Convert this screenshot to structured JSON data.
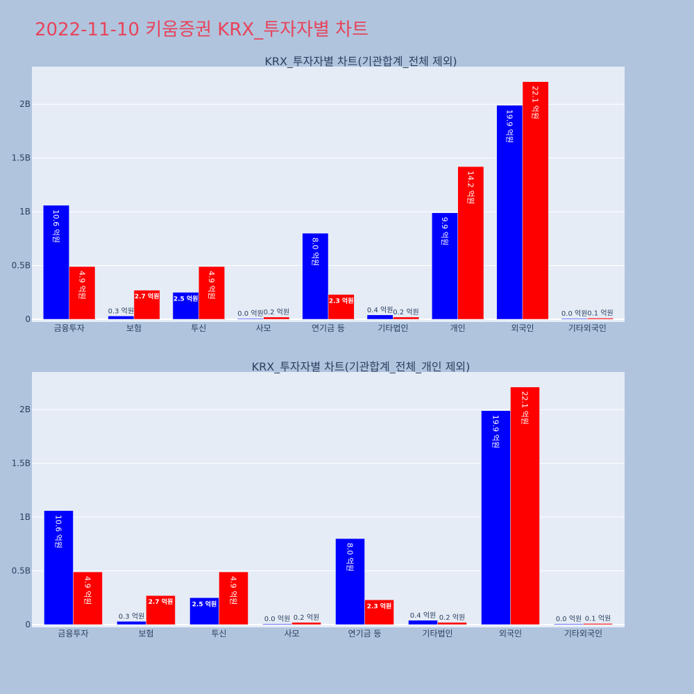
{
  "page": {
    "title": "2022-11-10 키움증권 KRX_투자자별 차트"
  },
  "colors": {
    "background": "#b0c4de",
    "plot_bg": "#e5ecf6",
    "grid": "#ffffff",
    "title": "#e8435a",
    "series_a": "#0000ff",
    "series_b": "#ff0000",
    "text": "#2a3f5f"
  },
  "chart_data": [
    {
      "type": "bar",
      "title": "KRX_투자자별 차트(기관합계_전체 제외)",
      "categories": [
        "금융투자",
        "보험",
        "투신",
        "사모",
        "연기금 등",
        "기타법인",
        "개인",
        "외국인",
        "기타외국인"
      ],
      "series": [
        {
          "values": [
            1.06,
            0.03,
            0.25,
            0.0,
            0.8,
            0.04,
            0.99,
            1.99,
            0.0
          ],
          "labels": [
            "10.6 억원",
            "0.3 억원",
            "2.5 억원",
            "0.0 억원",
            "8.0 억원",
            "0.4 억원",
            "9.9 억원",
            "19.9 억원",
            "0.0 억원"
          ]
        },
        {
          "values": [
            0.49,
            0.27,
            0.49,
            0.02,
            0.23,
            0.02,
            1.42,
            2.21,
            0.01
          ],
          "labels": [
            "4.9 억원",
            "2.7 억원",
            "4.9 억원",
            "0.2 억원",
            "2.3 억원",
            "0.2 억원",
            "14.2 억원",
            "22.1 억원",
            "0.1 억원"
          ]
        }
      ],
      "yticks": [
        0,
        0.5,
        1,
        1.5,
        2
      ],
      "ytick_labels": [
        "0",
        "0.5B",
        "1B",
        "1.5B",
        "2B"
      ],
      "ylim": [
        0,
        2.35
      ],
      "grid": true
    },
    {
      "type": "bar",
      "title": "KRX_투자자별 차트(기관합계_전체_개인 제외)",
      "categories": [
        "금융투자",
        "보험",
        "투신",
        "사모",
        "연기금 등",
        "기타법인",
        "외국인",
        "기타외국인"
      ],
      "series": [
        {
          "values": [
            1.06,
            0.03,
            0.25,
            0.0,
            0.8,
            0.04,
            1.99,
            0.0
          ],
          "labels": [
            "10.6 억원",
            "0.3 억원",
            "2.5 억원",
            "0.0 억원",
            "8.0 억원",
            "0.4 억원",
            "19.9 억원",
            "0.0 억원"
          ]
        },
        {
          "values": [
            0.49,
            0.27,
            0.49,
            0.02,
            0.23,
            0.02,
            2.21,
            0.01
          ],
          "labels": [
            "4.9 억원",
            "2.7 억원",
            "4.9 억원",
            "0.2 억원",
            "2.3 억원",
            "0.2 억원",
            "22.1 억원",
            "0.1 억원"
          ]
        }
      ],
      "yticks": [
        0,
        0.5,
        1,
        1.5,
        2
      ],
      "ytick_labels": [
        "0",
        "0.5B",
        "1B",
        "1.5B",
        "2B"
      ],
      "ylim": [
        0,
        2.35
      ],
      "grid": true
    }
  ]
}
